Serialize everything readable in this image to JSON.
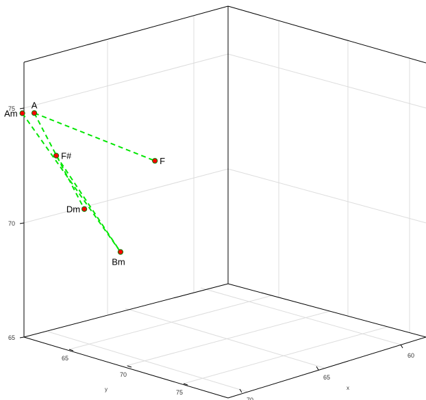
{
  "chart_data": {
    "type": "scatter",
    "subtype": "3d-scatter-with-lines",
    "title": "",
    "xlabel": "x",
    "ylabel": "y",
    "zlabel": "",
    "grid": true,
    "colors": {
      "marker_fill": "#ff0000",
      "marker_edge": "#008000",
      "line": "#00e600",
      "box": "#000000",
      "grid": "#dcdcdc"
    },
    "line_style": "dashed",
    "z_ticks": [
      "65",
      "70",
      "75"
    ],
    "x_ticks": [
      "60",
      "65",
      "70"
    ],
    "y_ticks": [
      "65",
      "70",
      "75"
    ],
    "points": [
      {
        "label": "Am",
        "x": 69.1,
        "y": 67.3,
        "z": 74.5
      },
      {
        "label": "A",
        "x": 68.6,
        "y": 67.4,
        "z": 74.4
      },
      {
        "label": "F#",
        "x": 67.8,
        "y": 67.7,
        "z": 72.4
      },
      {
        "label": "F",
        "x": 62.3,
        "y": 67.2,
        "z": 70.6
      },
      {
        "label": "Dm",
        "x": 67.0,
        "y": 68.3,
        "z": 70.0
      },
      {
        "label": "Bm",
        "x": 66.1,
        "y": 69.2,
        "z": 68.1
      }
    ],
    "connections": [
      [
        "Am",
        "Bm"
      ],
      [
        "A",
        "Dm"
      ],
      [
        "A",
        "F"
      ],
      [
        "F#",
        "Bm"
      ]
    ]
  }
}
